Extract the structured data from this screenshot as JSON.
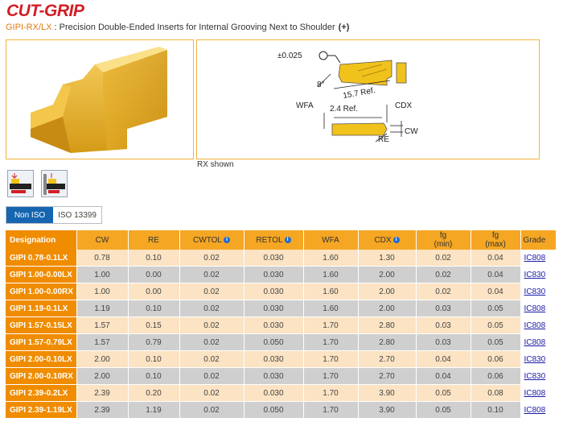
{
  "header": {
    "logo": "CUT-GRIP",
    "code": "GIPI-RX/LX",
    "separator": " : ",
    "description": "Precision Double-Ended Inserts for Internal Grooving Next to Shoulder",
    "plus": "(+)"
  },
  "diagram": {
    "tolerance": "±0.025",
    "angle": "8°",
    "length": "15.7 Ref.",
    "wfa": "WFA",
    "ref2": "2.4 Ref.",
    "cdx": "CDX",
    "cw": "CW",
    "re": "RE",
    "caption": "RX shown"
  },
  "toggle": {
    "non_iso": "Non ISO",
    "iso": "ISO 13399"
  },
  "table": {
    "headers": {
      "designation": "Designation",
      "cw": "CW",
      "re": "RE",
      "cwtol": "CWTOL",
      "retol": "RETOL",
      "wfa": "WFA",
      "cdx": "CDX",
      "fg_min_1": "fg",
      "fg_min_2": "(min)",
      "fg_max_1": "fg",
      "fg_max_2": "(max)",
      "grade": "Grade"
    },
    "rows": [
      {
        "designation": "GIPI 0.78-0.1LX",
        "cw": "0.78",
        "re": "0.10",
        "cwtol": "0.02",
        "retol": "0.030",
        "wfa": "1.60",
        "cdx": "1.30",
        "fgmin": "0.02",
        "fgmax": "0.04",
        "grade": "IC808"
      },
      {
        "designation": "GIPI 1.00-0.00LX",
        "cw": "1.00",
        "re": "0.00",
        "cwtol": "0.02",
        "retol": "0.030",
        "wfa": "1.60",
        "cdx": "2.00",
        "fgmin": "0.02",
        "fgmax": "0.04",
        "grade": "IC830"
      },
      {
        "designation": "GIPI 1.00-0.00RX",
        "cw": "1.00",
        "re": "0.00",
        "cwtol": "0.02",
        "retol": "0.030",
        "wfa": "1.60",
        "cdx": "2.00",
        "fgmin": "0.02",
        "fgmax": "0.04",
        "grade": "IC830"
      },
      {
        "designation": "GIPI 1.19-0.1LX",
        "cw": "1.19",
        "re": "0.10",
        "cwtol": "0.02",
        "retol": "0.030",
        "wfa": "1.60",
        "cdx": "2.00",
        "fgmin": "0.03",
        "fgmax": "0.05",
        "grade": "IC808"
      },
      {
        "designation": "GIPI 1.57-0.15LX",
        "cw": "1.57",
        "re": "0.15",
        "cwtol": "0.02",
        "retol": "0.030",
        "wfa": "1.70",
        "cdx": "2.80",
        "fgmin": "0.03",
        "fgmax": "0.05",
        "grade": "IC808"
      },
      {
        "designation": "GIPI 1.57-0.79LX",
        "cw": "1.57",
        "re": "0.79",
        "cwtol": "0.02",
        "retol": "0.050",
        "wfa": "1.70",
        "cdx": "2.80",
        "fgmin": "0.03",
        "fgmax": "0.05",
        "grade": "IC808"
      },
      {
        "designation": "GIPI 2.00-0.10LX",
        "cw": "2.00",
        "re": "0.10",
        "cwtol": "0.02",
        "retol": "0.030",
        "wfa": "1.70",
        "cdx": "2.70",
        "fgmin": "0.04",
        "fgmax": "0.06",
        "grade": "IC830"
      },
      {
        "designation": "GIPI 2.00-0.10RX",
        "cw": "2.00",
        "re": "0.10",
        "cwtol": "0.02",
        "retol": "0.030",
        "wfa": "1.70",
        "cdx": "2.70",
        "fgmin": "0.04",
        "fgmax": "0.06",
        "grade": "IC830"
      },
      {
        "designation": "GIPI 2.39-0.2LX",
        "cw": "2.39",
        "re": "0.20",
        "cwtol": "0.02",
        "retol": "0.030",
        "wfa": "1.70",
        "cdx": "3.90",
        "fgmin": "0.05",
        "fgmax": "0.08",
        "grade": "IC808"
      },
      {
        "designation": "GIPI 2.39-1.19LX",
        "cw": "2.39",
        "re": "1.19",
        "cwtol": "0.02",
        "retol": "0.050",
        "wfa": "1.70",
        "cdx": "3.90",
        "fgmin": "0.05",
        "fgmax": "0.10",
        "grade": "IC808"
      }
    ]
  }
}
